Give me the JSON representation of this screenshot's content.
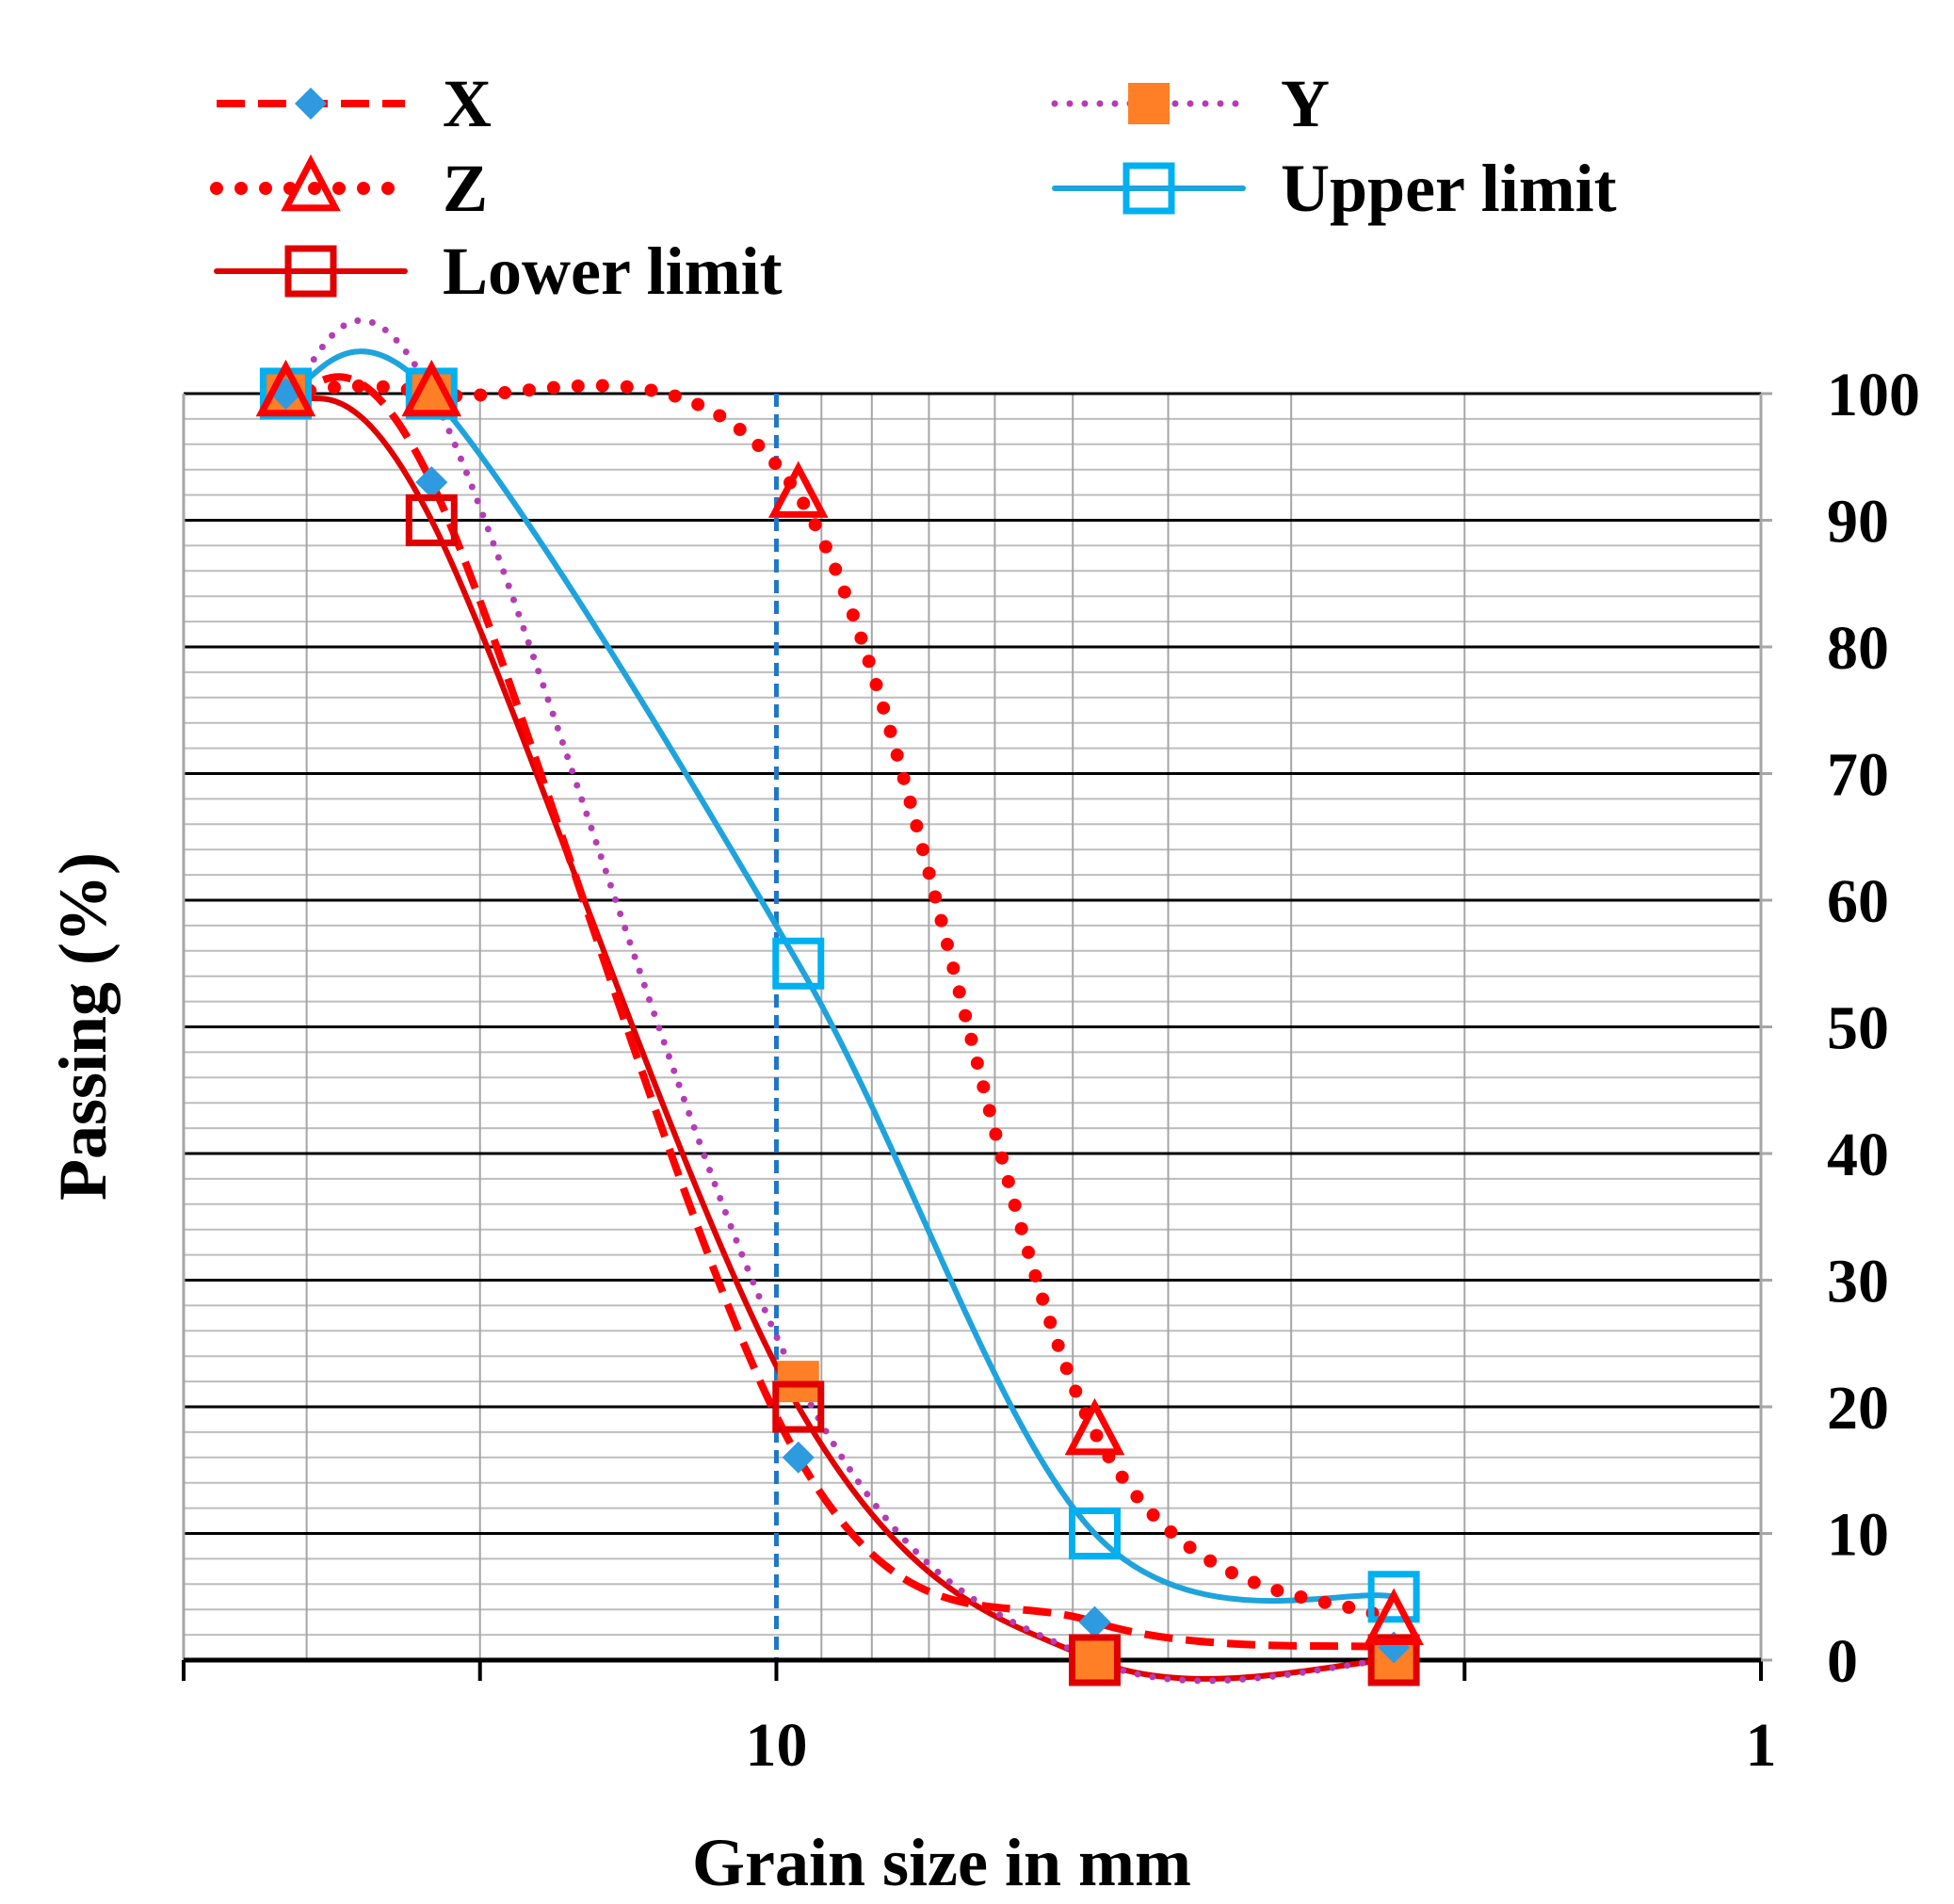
{
  "chart_data": {
    "type": "line",
    "xscale": "log",
    "xaxis_reversed": true,
    "xlabel": "Grain size in mm",
    "ylabel": "Passing (%)",
    "xlim": [
      40,
      1
    ],
    "ylim": [
      0,
      100
    ],
    "x_tick_labels": [
      "10",
      "1"
    ],
    "y_tick_labels": [
      "0",
      "10",
      "20",
      "30",
      "40",
      "50",
      "60",
      "70",
      "80",
      "90",
      "100"
    ],
    "grid": true,
    "legend_position": "top",
    "reference_line": {
      "x": 10,
      "style": "dashed",
      "color": "#1f77c9"
    },
    "series": [
      {
        "name": "X",
        "color": "#ff0000",
        "marker_color": "#2e9ae0",
        "marker": "diamond",
        "line": "dashed",
        "x": [
          31.5,
          22.4,
          9.5,
          4.75,
          2.36
        ],
        "y": [
          100,
          93,
          16,
          3,
          1
        ]
      },
      {
        "name": "Y",
        "color": "#b43cb4",
        "marker_color": "#ff7f27",
        "marker": "square-filled",
        "line": "dotted",
        "x": [
          31.5,
          22.4,
          9.5,
          4.75,
          2.36
        ],
        "y": [
          100,
          100,
          22,
          0,
          0
        ]
      },
      {
        "name": "Z",
        "color": "#ff0000",
        "marker_color": "#ff0000",
        "marker": "triangle-open",
        "line": "dotted-bold",
        "x": [
          31.5,
          22.4,
          9.5,
          4.75,
          2.36
        ],
        "y": [
          100,
          100,
          92,
          18,
          3
        ]
      },
      {
        "name": "Upper limit",
        "color": "#1fa3dc",
        "marker_color": "#00b0f0",
        "marker": "square-open",
        "line": "solid",
        "x": [
          31.5,
          22.4,
          9.5,
          4.75,
          2.36
        ],
        "y": [
          100,
          100,
          55,
          10,
          5
        ]
      },
      {
        "name": "Lower limit",
        "color": "#e00000",
        "marker_color": "#e00000",
        "marker": "square-open",
        "line": "solid",
        "x": [
          31.5,
          22.4,
          9.5,
          4.75,
          2.36
        ],
        "y": [
          100,
          90,
          20,
          0,
          0
        ]
      }
    ]
  }
}
